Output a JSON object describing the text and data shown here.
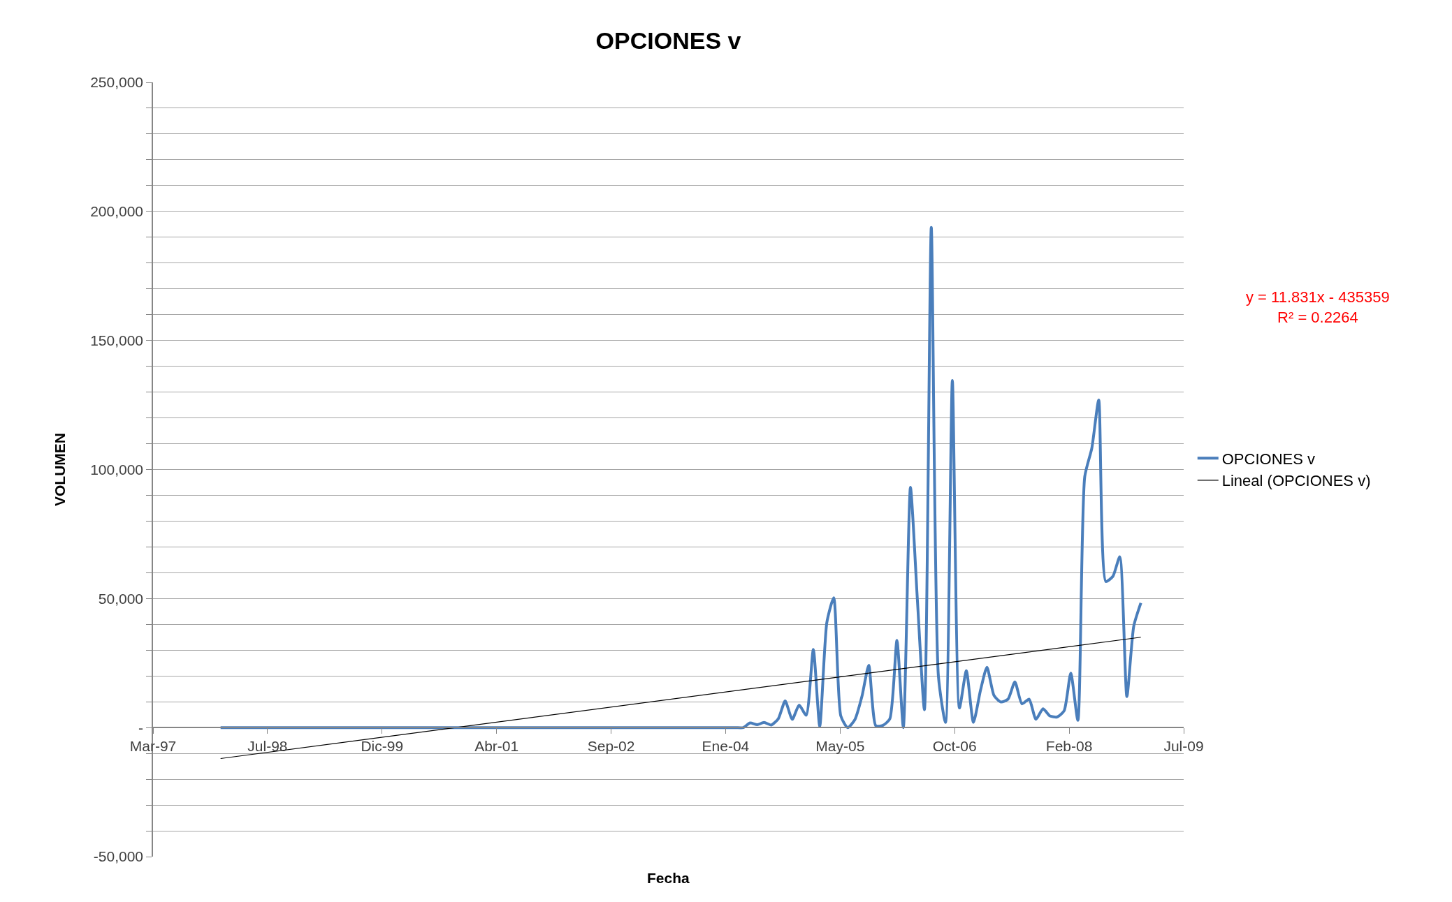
{
  "chart_data": {
    "type": "line",
    "title": "OPCIONES v",
    "xlabel": "Fecha",
    "ylabel": "VOLUMEN",
    "annotations": [
      "y = 11.831x - 435359\nR² = 0.2264"
    ],
    "series": [
      {
        "name": "OPCIONES v",
        "color": "#4a7ebb",
        "x": [
          "1997-12-31",
          "1998-12-31",
          "1999-12-31",
          "2000-12-31",
          "2001-12-31",
          "2002-12-31",
          "2003-12-31",
          "2004-01-31",
          "2004-02-29",
          "2004-03-31",
          "2004-04-30",
          "2004-05-31",
          "2004-06-30",
          "2004-07-31",
          "2004-08-31",
          "2004-09-30",
          "2004-10-31",
          "2004-11-30",
          "2004-12-31",
          "2005-01-31",
          "2005-02-28",
          "2005-03-31",
          "2005-04-30",
          "2005-05-31",
          "2005-06-30",
          "2005-07-31",
          "2005-08-31",
          "2005-09-30",
          "2005-10-31",
          "2005-11-30",
          "2005-12-31",
          "2006-01-31",
          "2006-02-28",
          "2006-03-31",
          "2006-04-30",
          "2006-05-31",
          "2006-06-30",
          "2006-07-31",
          "2006-08-31",
          "2006-09-30",
          "2006-10-31",
          "2006-11-30",
          "2006-12-31",
          "2007-01-31",
          "2007-02-28",
          "2007-03-31",
          "2007-04-30",
          "2007-05-31",
          "2007-06-30",
          "2007-07-31",
          "2007-08-31",
          "2007-09-30",
          "2007-10-31",
          "2007-11-30",
          "2007-12-31",
          "2008-01-31",
          "2008-02-29",
          "2008-03-31",
          "2008-04-30",
          "2008-05-31",
          "2008-06-30",
          "2008-07-31",
          "2008-08-31",
          "2008-09-30",
          "2008-10-31",
          "2008-11-30",
          "2008-12-31"
        ],
        "values": [
          0,
          0,
          0,
          0,
          0,
          0,
          0,
          0,
          0,
          0,
          1800,
          1100,
          2000,
          1000,
          3400,
          10300,
          3200,
          8700,
          4800,
          30300,
          400,
          40700,
          50300,
          4500,
          0,
          3000,
          12000,
          24100,
          700,
          800,
          3400,
          33800,
          0,
          93100,
          50000,
          6900,
          193800,
          20000,
          2000,
          134500,
          7600,
          22000,
          2000,
          14500,
          23400,
          12400,
          9900,
          11000,
          17700,
          9200,
          11000,
          3200,
          7300,
          4500,
          4100,
          6500,
          21100,
          2800,
          97200,
          108300,
          126900,
          56600,
          58600,
          66200,
          12000,
          39300,
          48300
        ]
      },
      {
        "name": "Lineal (OPCIONES v)",
        "color": "#000000",
        "x": [
          "1997-12-31",
          "2008-12-31"
        ],
        "values": [
          -12000,
          35000
        ]
      }
    ],
    "xlim": [
      "1997-03-11",
      "2009-07-06"
    ],
    "xticks": [
      {
        "value": "1997-03-11",
        "label": "Mar-97"
      },
      {
        "value": "1998-07-24",
        "label": "Jul-98"
      },
      {
        "value": "1999-12-06",
        "label": "Dic-99"
      },
      {
        "value": "2001-04-19",
        "label": "Abr-01"
      },
      {
        "value": "2002-09-01",
        "label": "Sep-02"
      },
      {
        "value": "2004-01-14",
        "label": "Ene-04"
      },
      {
        "value": "2005-05-28",
        "label": "May-05"
      },
      {
        "value": "2006-10-10",
        "label": "Oct-06"
      },
      {
        "value": "2008-02-22",
        "label": "Feb-08"
      },
      {
        "value": "2009-07-06",
        "label": "Jul-09"
      }
    ],
    "ylim": [
      -50000,
      250000
    ],
    "yticks": [
      {
        "value": -50000,
        "label": "-50,000"
      },
      {
        "value": -40000,
        "label": null
      },
      {
        "value": -30000,
        "label": null
      },
      {
        "value": -20000,
        "label": null
      },
      {
        "value": -10000,
        "label": null
      },
      {
        "value": 0,
        "label": "-"
      },
      {
        "value": 10000,
        "label": null
      },
      {
        "value": 20000,
        "label": null
      },
      {
        "value": 30000,
        "label": null
      },
      {
        "value": 40000,
        "label": null
      },
      {
        "value": 50000,
        "label": "50,000"
      },
      {
        "value": 60000,
        "label": null
      },
      {
        "value": 70000,
        "label": null
      },
      {
        "value": 80000,
        "label": null
      },
      {
        "value": 90000,
        "label": null
      },
      {
        "value": 100000,
        "label": "100,000"
      },
      {
        "value": 110000,
        "label": null
      },
      {
        "value": 120000,
        "label": null
      },
      {
        "value": 130000,
        "label": null
      },
      {
        "value": 140000,
        "label": null
      },
      {
        "value": 150000,
        "label": "150,000"
      },
      {
        "value": 160000,
        "label": null
      },
      {
        "value": 170000,
        "label": null
      },
      {
        "value": 180000,
        "label": null
      },
      {
        "value": 190000,
        "label": null
      },
      {
        "value": 200000,
        "label": "200,000"
      },
      {
        "value": 210000,
        "label": null
      },
      {
        "value": 220000,
        "label": null
      },
      {
        "value": 230000,
        "label": null
      },
      {
        "value": 240000,
        "label": null
      },
      {
        "value": 250000,
        "label": "250,000"
      }
    ],
    "grid": "y",
    "legend": "right",
    "line_style": "solid",
    "marker": "none"
  }
}
